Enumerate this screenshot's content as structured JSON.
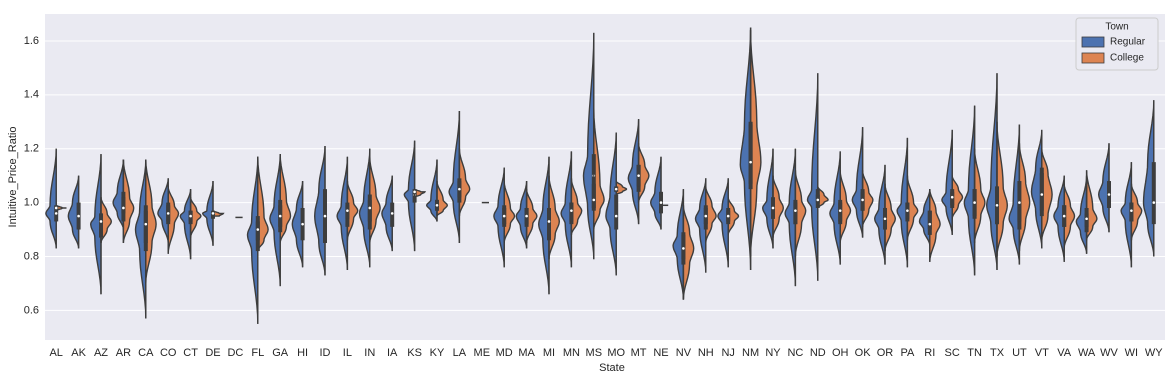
{
  "chart_data": {
    "type": "split-violin",
    "xlabel": "State",
    "ylabel": "Intuitive_Price_Ratio",
    "legend_title": "Town",
    "legend_position": "upper right",
    "grid": true,
    "stat_order": [
      "min",
      "q1",
      "median",
      "q3",
      "max"
    ],
    "categories": [
      "AL",
      "AK",
      "AZ",
      "AR",
      "CA",
      "CO",
      "CT",
      "DE",
      "DC",
      "FL",
      "GA",
      "HI",
      "ID",
      "IL",
      "IN",
      "IA",
      "KS",
      "KY",
      "LA",
      "ME",
      "MD",
      "MA",
      "MI",
      "MN",
      "MS",
      "MO",
      "MT",
      "NE",
      "NV",
      "NH",
      "NJ",
      "NM",
      "NY",
      "NC",
      "ND",
      "OH",
      "OK",
      "OR",
      "PA",
      "RI",
      "SC",
      "TN",
      "TX",
      "UT",
      "VT",
      "VA",
      "WA",
      "WV",
      "WI",
      "WY"
    ],
    "ylim": [
      0.49,
      1.7
    ],
    "yticks": [
      0.6,
      0.8,
      {
        "value": 1,
        "label": "1.0"
      },
      1.2,
      1.4,
      1.6
    ],
    "series": [
      {
        "name": "Regular",
        "color": "#4c72b0",
        "values": [
          [
            0.83,
            0.93,
            0.96,
            0.99,
            1.2
          ],
          [
            0.83,
            0.9,
            0.95,
            1.0,
            1.1
          ],
          [
            0.66,
            0.87,
            0.92,
            0.95,
            1.18
          ],
          [
            0.9,
            0.96,
            1.0,
            1.04,
            1.16
          ],
          [
            0.57,
            0.82,
            0.9,
            0.97,
            1.16
          ],
          [
            0.85,
            0.93,
            0.96,
            1.0,
            1.09
          ],
          [
            0.79,
            0.92,
            0.95,
            0.97,
            1.05
          ],
          [
            0.84,
            0.94,
            0.96,
            0.97,
            1.08
          ],
          null,
          [
            0.55,
            0.82,
            0.88,
            0.93,
            1.17
          ],
          [
            0.69,
            0.89,
            0.94,
            0.99,
            1.18
          ],
          [
            0.76,
            0.86,
            0.92,
            0.98,
            1.08
          ],
          [
            0.73,
            0.85,
            0.95,
            1.05,
            1.21
          ],
          [
            0.75,
            0.91,
            0.95,
            0.99,
            1.17
          ],
          [
            0.76,
            0.9,
            0.96,
            1.01,
            1.2
          ],
          [
            0.82,
            0.91,
            0.96,
            1.0,
            1.1
          ],
          [
            0.82,
            1.0,
            1.03,
            1.05,
            1.23
          ],
          [
            0.93,
            0.97,
            0.99,
            1.01,
            1.16
          ],
          [
            0.85,
            1.0,
            1.04,
            1.08,
            1.34
          ],
          null,
          [
            0.76,
            0.91,
            0.95,
            0.99,
            1.13
          ],
          [
            0.83,
            0.91,
            0.95,
            0.98,
            1.08
          ],
          [
            0.66,
            0.86,
            0.92,
            0.98,
            1.17
          ],
          [
            0.76,
            0.92,
            0.96,
            1.0,
            1.19
          ],
          [
            0.79,
            0.98,
            1.1,
            1.18,
            1.63
          ],
          [
            0.73,
            0.9,
            0.95,
            1.03,
            1.26
          ],
          [
            0.92,
            1.04,
            1.09,
            1.14,
            1.31
          ],
          [
            0.9,
            0.96,
            1.0,
            1.04,
            1.17
          ],
          [
            0.64,
            0.79,
            0.84,
            0.88,
            1.05
          ],
          [
            0.74,
            0.9,
            0.94,
            0.98,
            1.09
          ],
          [
            0.76,
            0.92,
            0.95,
            0.98,
            1.09
          ],
          [
            0.75,
            1.07,
            1.14,
            1.29,
            1.65
          ],
          [
            0.83,
            0.94,
            0.98,
            1.01,
            1.2
          ],
          [
            0.69,
            0.92,
            0.96,
            1.0,
            1.2
          ],
          [
            0.71,
            0.98,
            1.01,
            1.05,
            1.48
          ],
          [
            0.77,
            0.92,
            0.96,
            1.0,
            1.19
          ],
          [
            0.87,
            0.97,
            1.01,
            1.05,
            1.28
          ],
          [
            0.77,
            0.9,
            0.94,
            0.98,
            1.14
          ],
          [
            0.76,
            0.93,
            0.97,
            1.0,
            1.24
          ],
          [
            0.84,
            0.9,
            0.93,
            0.97,
            1.05
          ],
          [
            0.88,
            0.98,
            1.01,
            1.04,
            1.27
          ],
          [
            0.73,
            0.94,
            1.0,
            1.05,
            1.36
          ],
          [
            0.75,
            0.92,
            0.99,
            1.06,
            1.48
          ],
          [
            0.77,
            0.9,
            0.94,
            1.0,
            1.29
          ],
          [
            0.83,
            0.97,
            1.04,
            1.13,
            1.27
          ],
          [
            0.78,
            0.91,
            0.95,
            0.99,
            1.1
          ],
          [
            0.81,
            0.89,
            0.93,
            0.96,
            1.1
          ],
          [
            0.89,
            0.98,
            1.03,
            1.08,
            1.22
          ],
          [
            0.76,
            0.93,
            0.97,
            1.0,
            1.15
          ],
          [
            0.8,
            0.92,
            1.0,
            1.15,
            1.38
          ]
        ]
      },
      {
        "name": "College",
        "color": "#dd8452",
        "values": [
          [
            0.97,
            0.98,
            0.98,
            0.98,
            0.99
          ],
          null,
          [
            0.85,
            0.9,
            0.93,
            0.96,
            1.02
          ],
          [
            0.85,
            0.93,
            0.98,
            1.02,
            1.16
          ],
          [
            0.7,
            0.85,
            0.92,
            0.99,
            1.16
          ],
          [
            0.81,
            0.92,
            0.96,
            0.99,
            1.06
          ],
          [
            0.87,
            0.93,
            0.95,
            0.97,
            1.02
          ],
          [
            0.95,
            0.95,
            0.96,
            0.96,
            0.97
          ],
          [
            0.945,
            0.945,
            0.945,
            0.945,
            0.945
          ],
          [
            0.82,
            0.86,
            0.9,
            0.95,
            1.17
          ],
          [
            0.85,
            0.91,
            0.95,
            1.01,
            1.18
          ],
          null,
          null,
          [
            0.86,
            0.94,
            0.97,
            1.0,
            1.08
          ],
          [
            0.85,
            0.93,
            0.98,
            1.03,
            1.17
          ],
          null,
          [
            1.02,
            1.03,
            1.04,
            1.04,
            1.05
          ],
          [
            0.95,
            0.97,
            0.99,
            1.01,
            1.08
          ],
          [
            0.95,
            1.02,
            1.05,
            1.09,
            1.2
          ],
          [
            1.0,
            1.0,
            1.0,
            1.0,
            1.0
          ],
          [
            0.85,
            0.92,
            0.95,
            0.98,
            1.08
          ],
          [
            0.85,
            0.92,
            0.95,
            0.98,
            1.05
          ],
          [
            0.79,
            0.88,
            0.93,
            0.98,
            1.1
          ],
          [
            0.88,
            0.93,
            0.97,
            1.0,
            1.09
          ],
          [
            0.9,
            0.97,
            1.01,
            1.07,
            1.35
          ],
          [
            1.03,
            1.04,
            1.05,
            1.06,
            1.08
          ],
          [
            1.0,
            1.06,
            1.1,
            1.14,
            1.22
          ],
          [
            0.99,
            0.99,
            0.99,
            0.99,
            0.99
          ],
          [
            0.64,
            0.77,
            0.83,
            0.89,
            0.99
          ],
          [
            0.85,
            0.92,
            0.95,
            0.99,
            1.06
          ],
          [
            0.88,
            0.93,
            0.95,
            0.97,
            1.02
          ],
          [
            0.8,
            1.05,
            1.15,
            1.3,
            1.64
          ],
          [
            0.87,
            0.94,
            0.98,
            1.02,
            1.1
          ],
          [
            0.8,
            0.92,
            0.97,
            1.01,
            1.12
          ],
          [
            0.98,
            1.0,
            1.01,
            1.03,
            1.06
          ],
          [
            0.85,
            0.93,
            0.97,
            1.01,
            1.12
          ],
          [
            0.91,
            0.97,
            1.01,
            1.04,
            1.12
          ],
          [
            0.82,
            0.9,
            0.94,
            0.98,
            1.07
          ],
          [
            0.86,
            0.94,
            0.97,
            1.0,
            1.1
          ],
          [
            0.78,
            0.88,
            0.92,
            0.97,
            1.05
          ],
          [
            0.94,
            0.99,
            1.02,
            1.05,
            1.1
          ],
          [
            0.85,
            0.95,
            1.0,
            1.05,
            1.2
          ],
          [
            0.8,
            0.92,
            0.99,
            1.06,
            1.3
          ],
          [
            0.82,
            0.93,
            1.0,
            1.08,
            1.22
          ],
          [
            0.86,
            0.95,
            1.03,
            1.11,
            1.2
          ],
          [
            0.83,
            0.91,
            0.95,
            0.99,
            1.07
          ],
          [
            0.86,
            0.91,
            0.94,
            0.98,
            1.12
          ],
          null,
          [
            0.86,
            0.93,
            0.97,
            1.0,
            1.07
          ],
          null
        ]
      }
    ]
  }
}
